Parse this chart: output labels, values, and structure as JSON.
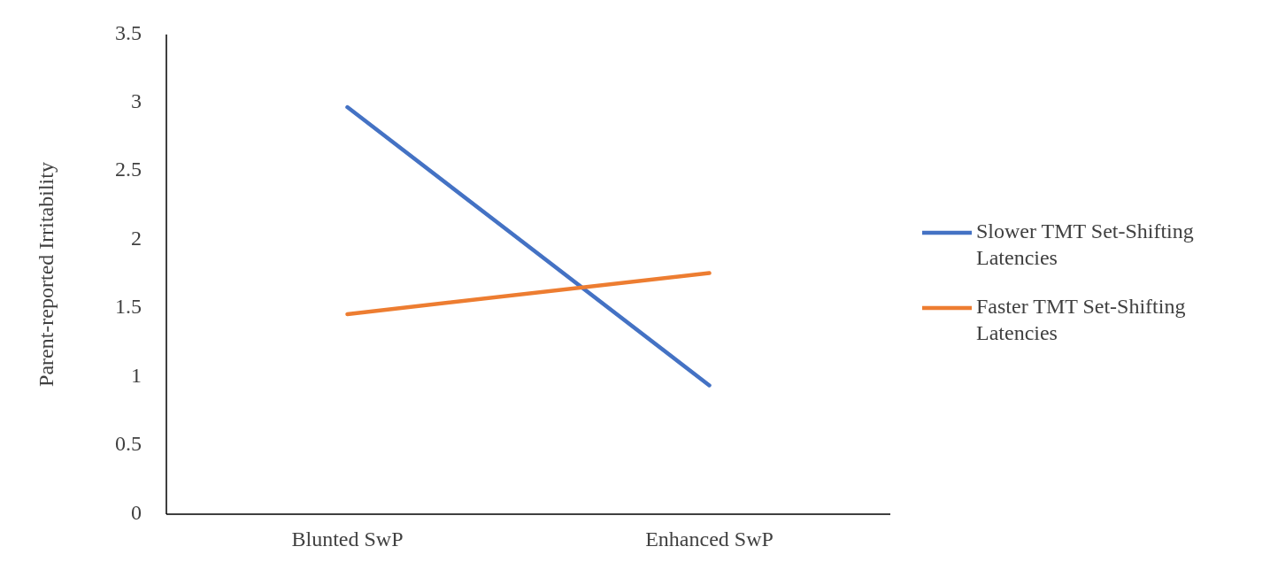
{
  "chart_data": {
    "type": "line",
    "ylabel": "Parent-reported Irritability",
    "categories": [
      "Blunted SwP",
      "Enhanced SwP"
    ],
    "series": [
      {
        "name": "Slower TMT Set-Shifting Latencies",
        "color": "#4472c4",
        "values": [
          2.97,
          0.94
        ]
      },
      {
        "name": "Faster TMT Set-Shifting Latencies",
        "color": "#ed7d31",
        "values": [
          1.46,
          1.76
        ]
      }
    ],
    "ylim": [
      0,
      3.5
    ],
    "yticks": [
      0,
      0.5,
      1,
      1.5,
      2,
      2.5,
      3,
      3.5
    ],
    "grid": false,
    "legend": "right",
    "marker": "none",
    "line_style": "solid"
  }
}
